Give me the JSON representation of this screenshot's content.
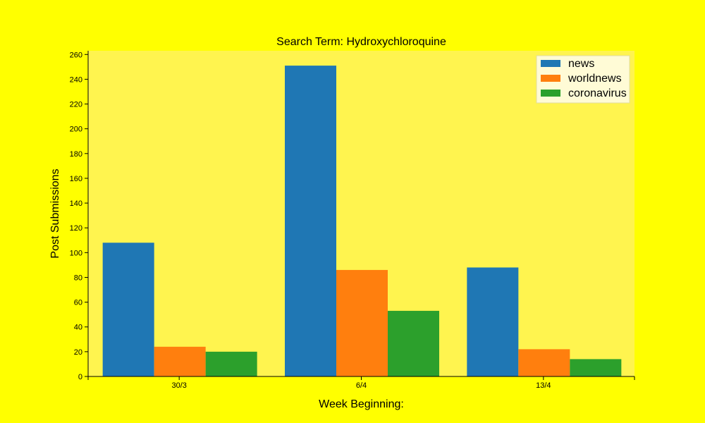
{
  "chart_data": {
    "type": "bar",
    "title": "Search Term: Hydroxychloroquine",
    "xlabel": "Week Beginning:",
    "ylabel": "Post Submissions",
    "categories": [
      "30/3",
      "6/4",
      "13/4"
    ],
    "series": [
      {
        "name": "news",
        "color": "#1f77b4",
        "values": [
          108,
          251,
          88
        ]
      },
      {
        "name": "worldnews",
        "color": "#ff7f0e",
        "values": [
          24,
          86,
          22
        ]
      },
      {
        "name": "coronavirus",
        "color": "#2ca02c",
        "values": [
          20,
          53,
          14
        ]
      }
    ],
    "ylim": [
      0,
      263
    ],
    "yticks": [
      0,
      20,
      40,
      60,
      80,
      100,
      120,
      140,
      160,
      180,
      200,
      220,
      240,
      260
    ],
    "legend_position": "top-right",
    "grid": false,
    "colors": {
      "page_background": "#ffff00",
      "plot_background": "#fff44f",
      "legend_background": "#fffbd6"
    }
  }
}
